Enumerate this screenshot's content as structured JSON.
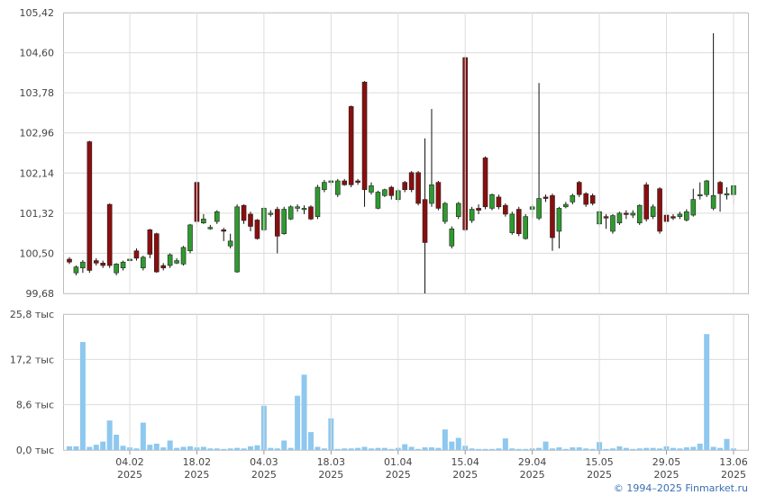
{
  "chart_data": [
    {
      "type": "candlestick",
      "up_color": "#2f9a2f",
      "down_color": "#8b0e0e",
      "ylim": [
        99.68,
        105.42
      ],
      "grid": true,
      "yticks": [
        {
          "value": 99.68,
          "label": "99,68"
        },
        {
          "value": 100.5,
          "label": "100,50"
        },
        {
          "value": 101.32,
          "label": "101,32"
        },
        {
          "value": 102.14,
          "label": "102,14"
        },
        {
          "value": 102.96,
          "label": "102,96"
        },
        {
          "value": 103.78,
          "label": "103,78"
        },
        {
          "value": 104.6,
          "label": "104,60"
        },
        {
          "value": 105.42,
          "label": "105,42"
        }
      ],
      "open": [
        100.38,
        100.1,
        100.2,
        102.78,
        100.35,
        100.3,
        101.5,
        100.1,
        100.2,
        100.35,
        100.55,
        100.2,
        100.98,
        100.9,
        100.25,
        100.25,
        100.3,
        100.28,
        100.55,
        101.95,
        101.12,
        101.0,
        101.15,
        100.98,
        100.65,
        100.12,
        101.48,
        101.3,
        101.18,
        100.98,
        101.3,
        101.4,
        100.9,
        101.2,
        101.42,
        101.4,
        101.45,
        101.25,
        101.8,
        101.95,
        101.7,
        101.98,
        103.5,
        101.98,
        104.0,
        101.75,
        101.42,
        101.68,
        101.85,
        101.6,
        101.95,
        102.15,
        102.15,
        101.6,
        101.52,
        101.95,
        101.15,
        100.65,
        101.25,
        104.5,
        101.17,
        101.42,
        102.45,
        101.42,
        101.65,
        101.48,
        100.92,
        101.4,
        100.8,
        101.4,
        101.22,
        101.65,
        101.68,
        100.95,
        101.45,
        101.55,
        101.95,
        101.72,
        101.68,
        101.1,
        101.25,
        100.95,
        101.12,
        101.32,
        101.28,
        101.12,
        101.9,
        101.25,
        101.82,
        101.28,
        101.25,
        101.25,
        101.18,
        101.28,
        101.68,
        101.7,
        101.42,
        101.95,
        101.7,
        101.7
      ],
      "high": [
        100.42,
        100.25,
        100.36,
        102.8,
        100.4,
        100.35,
        101.52,
        100.3,
        100.35,
        100.42,
        100.6,
        100.45,
        101.0,
        100.92,
        100.3,
        100.5,
        100.4,
        100.65,
        101.1,
        101.98,
        101.3,
        101.08,
        101.38,
        101.02,
        100.9,
        101.5,
        101.5,
        101.35,
        101.2,
        101.45,
        101.38,
        101.45,
        101.45,
        101.48,
        101.5,
        101.48,
        101.48,
        101.9,
        102.0,
        102.0,
        102.02,
        102.02,
        103.52,
        102.02,
        104.02,
        101.95,
        101.78,
        101.82,
        101.88,
        101.82,
        101.98,
        102.18,
        102.18,
        102.85,
        103.45,
        101.98,
        101.55,
        101.05,
        101.55,
        104.52,
        101.45,
        101.5,
        102.48,
        101.72,
        101.7,
        101.52,
        101.35,
        101.45,
        101.3,
        101.5,
        103.98,
        101.7,
        101.72,
        101.45,
        101.55,
        101.72,
        101.98,
        101.75,
        101.72,
        101.38,
        101.3,
        101.3,
        101.35,
        101.38,
        101.38,
        101.5,
        101.95,
        101.5,
        101.85,
        101.32,
        101.3,
        101.35,
        101.4,
        101.82,
        101.95,
        102.0,
        105.0,
        101.98,
        101.85,
        101.9
      ],
      "low": [
        100.28,
        100.05,
        100.1,
        100.1,
        100.25,
        100.2,
        100.2,
        100.05,
        100.15,
        100.3,
        100.35,
        100.15,
        100.4,
        100.1,
        100.15,
        100.2,
        100.28,
        100.25,
        100.5,
        101.1,
        101.1,
        100.98,
        101.1,
        100.75,
        100.6,
        100.1,
        101.1,
        100.95,
        100.78,
        100.95,
        101.25,
        100.5,
        100.88,
        101.18,
        101.35,
        101.3,
        101.18,
        101.2,
        101.75,
        101.9,
        101.65,
        101.88,
        101.85,
        101.9,
        101.45,
        101.7,
        101.4,
        101.65,
        101.6,
        101.55,
        101.75,
        101.75,
        101.48,
        99.68,
        101.45,
        101.38,
        101.1,
        100.6,
        101.2,
        100.95,
        101.12,
        101.3,
        101.4,
        101.38,
        101.4,
        101.25,
        100.88,
        100.85,
        100.78,
        101.22,
        101.18,
        101.55,
        100.55,
        100.6,
        101.42,
        101.5,
        101.65,
        101.45,
        101.48,
        101.05,
        101.0,
        100.9,
        101.08,
        101.2,
        101.22,
        101.08,
        101.15,
        101.2,
        100.9,
        101.1,
        101.18,
        101.2,
        101.15,
        101.25,
        101.6,
        101.65,
        101.38,
        101.35,
        101.6,
        101.5
      ],
      "close": [
        100.32,
        100.22,
        100.32,
        100.15,
        100.3,
        100.25,
        100.25,
        100.28,
        100.32,
        100.38,
        100.4,
        100.42,
        100.48,
        100.12,
        100.2,
        100.47,
        100.35,
        100.62,
        101.08,
        101.15,
        101.2,
        101.03,
        101.35,
        100.95,
        100.75,
        101.45,
        101.17,
        101.05,
        100.8,
        101.42,
        101.32,
        100.85,
        101.4,
        101.45,
        101.45,
        101.42,
        101.2,
        101.85,
        101.95,
        101.98,
        101.98,
        101.9,
        101.9,
        101.95,
        101.8,
        101.88,
        101.75,
        101.8,
        101.68,
        101.78,
        101.8,
        101.8,
        101.52,
        100.72,
        101.9,
        101.42,
        101.52,
        101.0,
        101.52,
        100.98,
        101.4,
        101.38,
        101.45,
        101.7,
        101.45,
        101.3,
        101.3,
        100.9,
        101.25,
        101.45,
        101.62,
        101.62,
        100.82,
        101.42,
        101.5,
        101.68,
        101.7,
        101.5,
        101.52,
        101.35,
        101.22,
        101.27,
        101.32,
        101.3,
        101.32,
        101.48,
        101.2,
        101.45,
        100.95,
        101.15,
        101.22,
        101.3,
        101.35,
        101.6,
        101.7,
        101.98,
        101.68,
        101.72,
        101.72,
        101.88
      ]
    },
    {
      "type": "bar",
      "color": "#8ec8ef",
      "grid": true,
      "ylim": [
        0,
        25.8
      ],
      "yticks": [
        {
          "value": 0,
          "label": "0,0 тыс"
        },
        {
          "value": 8.6,
          "label": "8,6 тыс"
        },
        {
          "value": 17.2,
          "label": "17,2 тыс"
        },
        {
          "value": 25.8,
          "label": "25,8 тыс"
        }
      ],
      "categories": [
        null,
        null,
        null,
        null,
        null,
        null,
        null,
        null,
        null,
        "04.02\n2025",
        null,
        null,
        null,
        null,
        null,
        null,
        null,
        null,
        null,
        "18.02\n2025",
        null,
        null,
        null,
        null,
        null,
        null,
        null,
        null,
        null,
        "04.03\n2025",
        null,
        null,
        null,
        null,
        null,
        null,
        null,
        null,
        null,
        "18.03\n2025",
        null,
        null,
        null,
        null,
        null,
        null,
        null,
        null,
        null,
        "01.04\n2025",
        null,
        null,
        null,
        null,
        null,
        null,
        null,
        null,
        null,
        "15.04\n2025",
        null,
        null,
        null,
        null,
        null,
        null,
        null,
        null,
        null,
        "29.04\n2025",
        null,
        null,
        null,
        null,
        null,
        null,
        null,
        null,
        null,
        "15.05\n2025",
        null,
        null,
        null,
        null,
        null,
        null,
        null,
        null,
        null,
        "29.05\n2025",
        null,
        null,
        null,
        null,
        null,
        null,
        null,
        null,
        null,
        "13.06\n2025"
      ],
      "values": [
        0.7,
        0.7,
        20.5,
        0.6,
        1.0,
        1.6,
        5.6,
        2.9,
        0.8,
        0.5,
        0.3,
        5.2,
        1.0,
        1.2,
        0.5,
        1.8,
        0.4,
        0.6,
        0.7,
        0.5,
        0.6,
        0.3,
        0.3,
        0.2,
        0.3,
        0.4,
        0.3,
        0.7,
        0.9,
        8.4,
        0.4,
        0.3,
        1.8,
        0.4,
        10.3,
        14.3,
        3.4,
        0.6,
        0.3,
        6.0,
        0.2,
        0.3,
        0.3,
        0.4,
        0.6,
        0.3,
        0.4,
        0.4,
        0.2,
        0.4,
        1.1,
        0.6,
        0.2,
        0.5,
        0.5,
        0.4,
        3.9,
        1.6,
        2.3,
        0.8,
        0.3,
        0.2,
        0.2,
        0.2,
        0.3,
        2.2,
        0.3,
        0.2,
        0.2,
        0.3,
        0.4,
        1.6,
        0.3,
        0.5,
        0.2,
        0.5,
        0.5,
        0.3,
        0.2,
        1.5,
        0.2,
        0.3,
        0.7,
        0.4,
        0.2,
        0.3,
        0.4,
        0.4,
        0.3,
        0.7,
        0.4,
        0.3,
        0.5,
        0.6,
        1.2,
        22.0,
        0.6,
        0.4,
        2.1,
        0.3
      ]
    }
  ],
  "footer": "© 1994–2025 Finmarket.ru"
}
